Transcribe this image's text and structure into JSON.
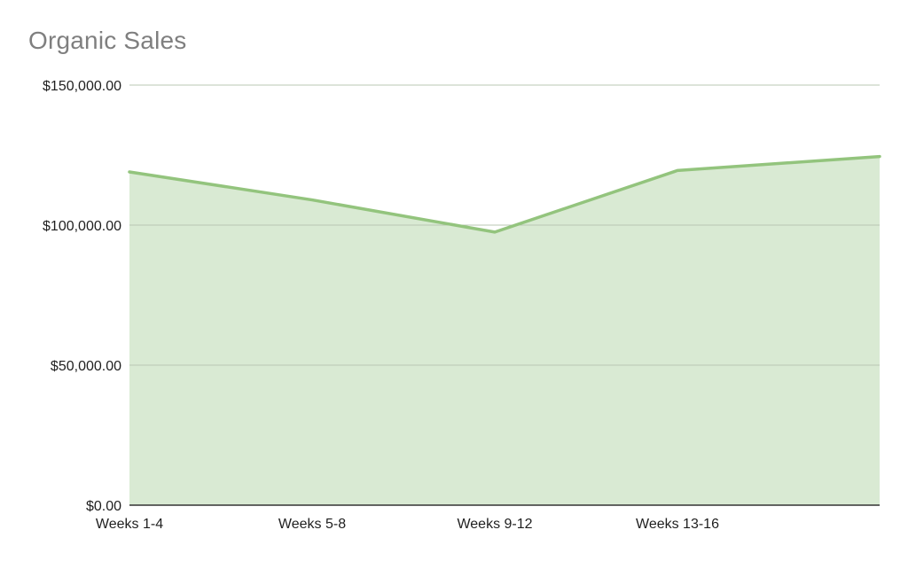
{
  "chart_data": {
    "type": "area",
    "title": "Organic Sales",
    "xlabel": "",
    "ylabel": "",
    "categories": [
      "Weeks 1-4",
      "Weeks 5-8",
      "Weeks 9-12",
      "Weeks 13-16",
      ""
    ],
    "values": [
      119000,
      109000,
      97500,
      119500,
      124500
    ],
    "ylim": [
      0,
      150000
    ],
    "yticks": [
      0,
      50000,
      100000,
      150000
    ],
    "ytick_labels": [
      "$0.00",
      "$50,000.00",
      "$100,000.00",
      "$150,000.00"
    ],
    "grid": true,
    "legend": "none",
    "colors": {
      "line": "#93c47d",
      "fill": "#d9ead3",
      "grid": "#c8c8c8",
      "axis": "#333333",
      "title": "#7f7f7f"
    }
  }
}
